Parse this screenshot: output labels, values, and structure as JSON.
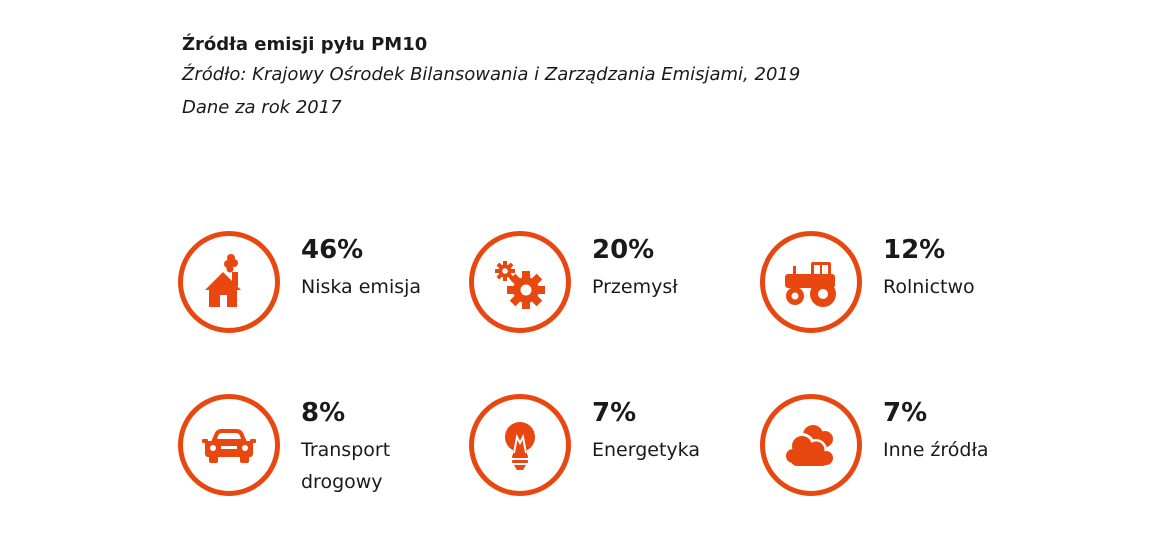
{
  "header": {
    "title": "Źródła emisji pyłu PM10",
    "source": "Źródło: Krajowy Ośrodek Bilansowania i Zarządzania Emisjami, 2019",
    "year_note": "Dane za rok 2017"
  },
  "accent_color": "#E8470F",
  "chart_data": {
    "type": "infographic",
    "title": "Źródła emisji pyłu PM10",
    "unit": "%",
    "items": [
      {
        "label": "Niska emisja",
        "value": 46,
        "value_text": "46%",
        "icon": "house-smoke-icon"
      },
      {
        "label": "Przemysł",
        "value": 20,
        "value_text": "20%",
        "icon": "gears-icon"
      },
      {
        "label": "Rolnictwo",
        "value": 12,
        "value_text": "12%",
        "icon": "tractor-icon"
      },
      {
        "label": "Transport\ndrogowy",
        "value": 8,
        "value_text": "8%",
        "icon": "car-icon"
      },
      {
        "label": "Energetyka",
        "value": 7,
        "value_text": "7%",
        "icon": "lightbulb-icon"
      },
      {
        "label": "Inne źródła",
        "value": 7,
        "value_text": "7%",
        "icon": "cloud-icon"
      }
    ]
  }
}
